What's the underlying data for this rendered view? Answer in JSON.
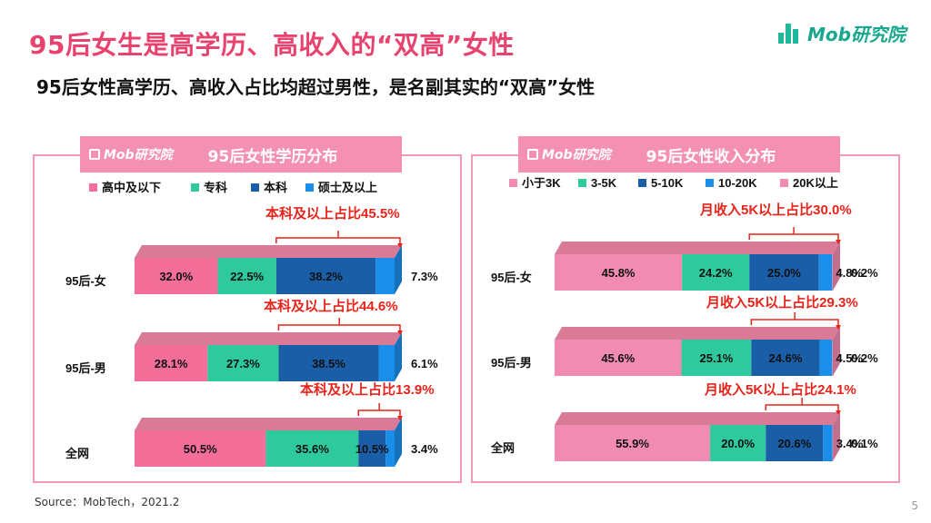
{
  "title": "95后女生是高学历、高收入的“双高”女性",
  "subtitle": "95后女性高学历、高收入占比均超过男性，是名副其实的“双高”女性",
  "logo_text": "Mob研究院",
  "banner_logo_text": "Mob研究院",
  "watermark": "MobTech",
  "source": "Source：MobTech，2021.2",
  "page_number": "5",
  "colors": {
    "pink": "#f36f99",
    "teal": "#2ec99d",
    "blue": "#1a5ea8",
    "lightblue": "#1a8ee8",
    "lightpink": "#f28bb2",
    "red": "#e8231a",
    "title_pink": "#e8436f"
  },
  "chart_data": [
    {
      "type": "bar",
      "orientation": "horizontal-stacked",
      "title": "95后女性学历分布",
      "categories": [
        "95后-女",
        "95后-男",
        "全网"
      ],
      "series": [
        {
          "name": "高中及以下",
          "values": [
            32.0,
            28.1,
            50.5
          ],
          "labels": [
            "32.0%",
            "28.1%",
            "50.5%"
          ]
        },
        {
          "name": "专科",
          "values": [
            22.5,
            27.3,
            35.6
          ],
          "labels": [
            "22.5%",
            "27.3%",
            "35.6%"
          ]
        },
        {
          "name": "本科",
          "values": [
            38.2,
            38.5,
            10.5
          ],
          "labels": [
            "38.2%",
            "38.5%",
            "10.5%"
          ]
        },
        {
          "name": "硕士及以上",
          "values": [
            7.3,
            6.1,
            3.4
          ],
          "labels": [
            "7.3%",
            "6.1%",
            "3.4%"
          ]
        }
      ],
      "annotations": [
        "本科及以上占比45.5%",
        "本科及以上占比44.6%",
        "本科及以上占比13.9%"
      ]
    },
    {
      "type": "bar",
      "orientation": "horizontal-stacked",
      "title": "95后女性收入分布",
      "categories": [
        "95后-女",
        "95后-男",
        "全网"
      ],
      "series": [
        {
          "name": "小于3K",
          "values": [
            45.8,
            45.6,
            55.9
          ],
          "labels": [
            "45.8%",
            "45.6%",
            "55.9%"
          ]
        },
        {
          "name": "3-5K",
          "values": [
            24.2,
            25.1,
            20.0
          ],
          "labels": [
            "24.2%",
            "25.1%",
            "20.0%"
          ]
        },
        {
          "name": "5-10K",
          "values": [
            25.0,
            24.6,
            20.6
          ],
          "labels": [
            "25.0%",
            "24.6%",
            "20.6%"
          ]
        },
        {
          "name": "10-20K",
          "values": [
            4.8,
            4.5,
            3.4
          ],
          "labels": [
            "4.8%",
            "4.5%",
            "3.4%"
          ]
        },
        {
          "name": "20K以上",
          "values": [
            0.2,
            0.2,
            0.1
          ],
          "labels": [
            "0.2%",
            "0.2%",
            "0.1%"
          ]
        }
      ],
      "annotations": [
        "月收入5K以上占比30.0%",
        "月收入5K以上占比29.3%",
        "月收入5K以上占比24.1%"
      ]
    }
  ]
}
